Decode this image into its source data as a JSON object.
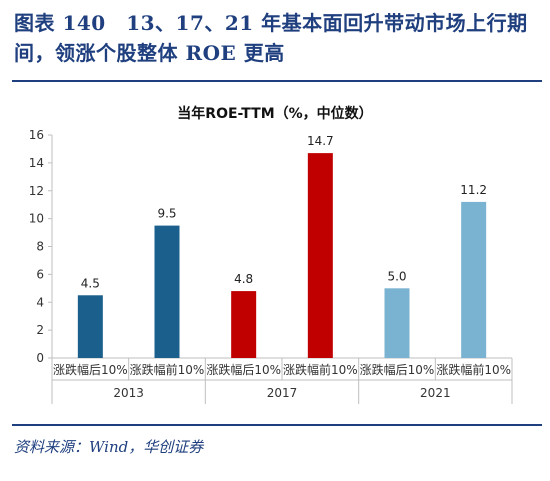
{
  "figure": {
    "title": "图表 140　13、17、21 年基本面回升带动市场上行期间，领涨个股整体 ROE 更高",
    "source": "资料来源：Wind，华创证券"
  },
  "chart_data": {
    "type": "bar",
    "title": "当年ROE-TTM（%，中位数）",
    "ylim": [
      0,
      16
    ],
    "yticks": [
      0,
      2,
      4,
      6,
      8,
      10,
      12,
      14,
      16
    ],
    "grid": false,
    "legend": "none",
    "groups": [
      "2013",
      "2017",
      "2021"
    ],
    "categories": [
      "涨跌幅后10%",
      "涨跌幅前10%",
      "涨跌幅后10%",
      "涨跌幅前10%",
      "涨跌幅后10%",
      "涨跌幅前10%"
    ],
    "values": [
      4.5,
      9.5,
      4.8,
      14.7,
      5.0,
      11.2
    ],
    "value_labels": [
      "4.5",
      "9.5",
      "4.8",
      "14.7",
      "5.0",
      "11.2"
    ],
    "colors": [
      "#1b5f8c",
      "#1b5f8c",
      "#c00000",
      "#c00000",
      "#7ab3d1",
      "#7ab3d1"
    ]
  }
}
